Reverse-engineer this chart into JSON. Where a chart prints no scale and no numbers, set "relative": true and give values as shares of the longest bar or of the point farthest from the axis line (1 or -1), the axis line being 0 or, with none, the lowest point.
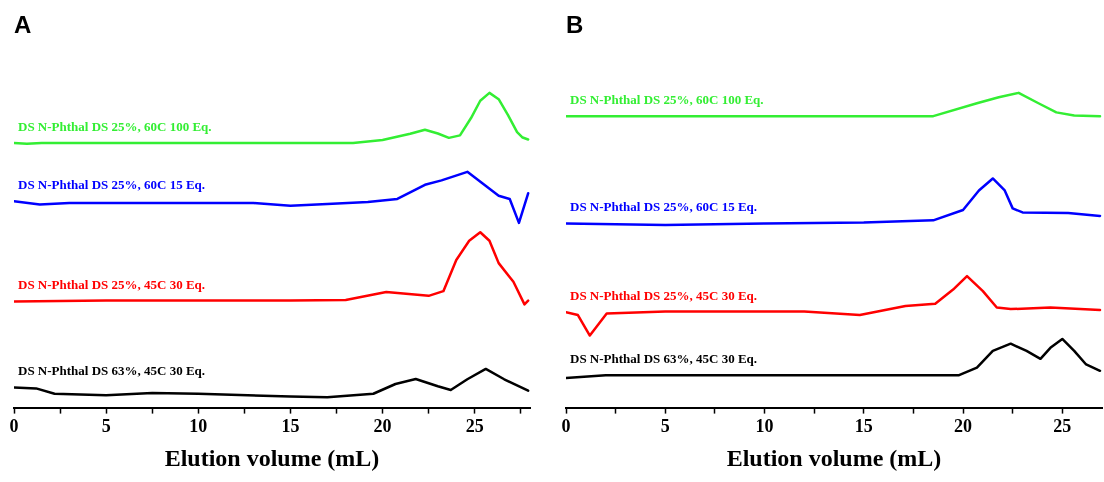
{
  "chart_data": [
    {
      "type": "line",
      "title": "A",
      "xlabel": "Elution volume (mL)",
      "relative": true,
      "xlim": [
        0,
        28
      ],
      "xticks": [
        0,
        {
          "value": 2.5,
          "label": null
        },
        5,
        {
          "value": 7.5,
          "label": null
        },
        10,
        {
          "value": 12.5,
          "label": null
        },
        15,
        {
          "value": 17.5,
          "label": null
        },
        20,
        {
          "value": 22.5,
          "label": null
        },
        25,
        {
          "value": 27.5,
          "label": null
        }
      ],
      "grid": false,
      "marker": "none",
      "line_style": "solid",
      "series": [
        {
          "name": "DS N-Phthal DS 25%, 60C 100 Eq.",
          "color": "#33ee33",
          "x": [
            0,
            0.7,
            1.5,
            10,
            18.4,
            20,
            21.5,
            22.3,
            23,
            23.6,
            24.2,
            24.8,
            25.3,
            25.8,
            26.3,
            26.8,
            27.3,
            27.6,
            27.9
          ],
          "values": [
            0.841,
            0.838,
            0.841,
            0.841,
            0.841,
            0.85,
            0.87,
            0.883,
            0.871,
            0.857,
            0.865,
            0.92,
            0.975,
            1.0,
            0.98,
            0.93,
            0.875,
            0.858,
            0.852
          ]
        },
        {
          "name": "DS N-Phthal DS 25%, 60C 15 Eq.",
          "color": "#0000ff",
          "x": [
            0,
            1.4,
            3,
            10,
            13,
            15,
            17,
            19.2,
            20.8,
            22.3,
            23.2,
            24.6,
            26.3,
            26.9,
            27.4,
            27.9
          ],
          "values": [
            0.656,
            0.645,
            0.65,
            0.65,
            0.65,
            0.641,
            0.647,
            0.653,
            0.663,
            0.708,
            0.722,
            0.749,
            0.673,
            0.663,
            0.587,
            0.681
          ]
        },
        {
          "name": "DS N-Phthal DS 25%, 45C 30 Eq.",
          "color": "#ff0000",
          "x": [
            0,
            5,
            10,
            15,
            18,
            20.2,
            22.5,
            23.3,
            24,
            24.7,
            25.3,
            25.8,
            26.3,
            27.1,
            27.7,
            27.9
          ],
          "values": [
            0.337,
            0.34,
            0.34,
            0.34,
            0.342,
            0.367,
            0.355,
            0.37,
            0.469,
            0.53,
            0.557,
            0.53,
            0.459,
            0.4,
            0.328,
            0.34
          ]
        },
        {
          "name": "DS N-Phthal DS 63%, 45C 30 Eq.",
          "color": "#000000",
          "x": [
            0,
            1.2,
            2.2,
            5,
            7.5,
            10,
            15,
            17,
            19.5,
            20.7,
            21.8,
            23,
            23.7,
            24.6,
            25.6,
            26.6,
            27.9
          ],
          "values": [
            0.064,
            0.061,
            0.044,
            0.039,
            0.046,
            0.044,
            0.035,
            0.033,
            0.044,
            0.075,
            0.091,
            0.068,
            0.056,
            0.09,
            0.123,
            0.09,
            0.054
          ]
        }
      ]
    },
    {
      "type": "line",
      "title": "B",
      "xlabel": "Elution volume (mL)",
      "relative": true,
      "xlim": [
        0,
        27
      ],
      "xticks": [
        0,
        {
          "value": 2.5,
          "label": null
        },
        5,
        {
          "value": 7.5,
          "label": null
        },
        10,
        {
          "value": 12.5,
          "label": null
        },
        15,
        {
          "value": 17.5,
          "label": null
        },
        20,
        {
          "value": 22.5,
          "label": null
        },
        25
      ],
      "grid": false,
      "marker": "none",
      "line_style": "solid",
      "series": [
        {
          "name": "DS N-Phthal DS 25%, 60C 100 Eq.",
          "color": "#33ee33",
          "x": [
            0,
            10,
            18.5,
            20.7,
            21.8,
            22.8,
            23.8,
            24.7,
            25.6,
            26.9
          ],
          "values": [
            0.926,
            0.926,
            0.926,
            0.967,
            0.986,
            1.0,
            0.967,
            0.938,
            0.928,
            0.926
          ]
        },
        {
          "name": "DS N-Phthal DS 25%, 60C 15 Eq.",
          "color": "#0000ff",
          "x": [
            0,
            5,
            10,
            15,
            18.5,
            20,
            20.8,
            21.5,
            22.1,
            22.5,
            23,
            25.3,
            26.9
          ],
          "values": [
            0.585,
            0.58,
            0.585,
            0.588,
            0.595,
            0.628,
            0.69,
            0.728,
            0.69,
            0.633,
            0.62,
            0.618,
            0.609
          ]
        },
        {
          "name": "DS N-Phthal DS 25%, 45C 30 Eq.",
          "color": "#ff0000",
          "x": [
            0,
            0.6,
            1.2,
            2.05,
            5,
            12,
            14.8,
            17.1,
            18.6,
            19.5,
            20.2,
            21,
            21.7,
            22.4,
            24.4,
            26.9
          ],
          "values": [
            0.303,
            0.294,
            0.229,
            0.299,
            0.305,
            0.305,
            0.294,
            0.323,
            0.33,
            0.375,
            0.418,
            0.37,
            0.318,
            0.313,
            0.318,
            0.31
          ]
        },
        {
          "name": "DS N-Phthal DS 63%, 45C 30 Eq.",
          "color": "#000000",
          "x": [
            0,
            2,
            10,
            19.8,
            20.7,
            21.5,
            22.4,
            23.2,
            23.9,
            24.4,
            25,
            25.6,
            26.2,
            26.9
          ],
          "values": [
            0.094,
            0.103,
            0.103,
            0.103,
            0.127,
            0.18,
            0.203,
            0.18,
            0.155,
            0.19,
            0.218,
            0.18,
            0.137,
            0.117
          ]
        }
      ]
    }
  ]
}
